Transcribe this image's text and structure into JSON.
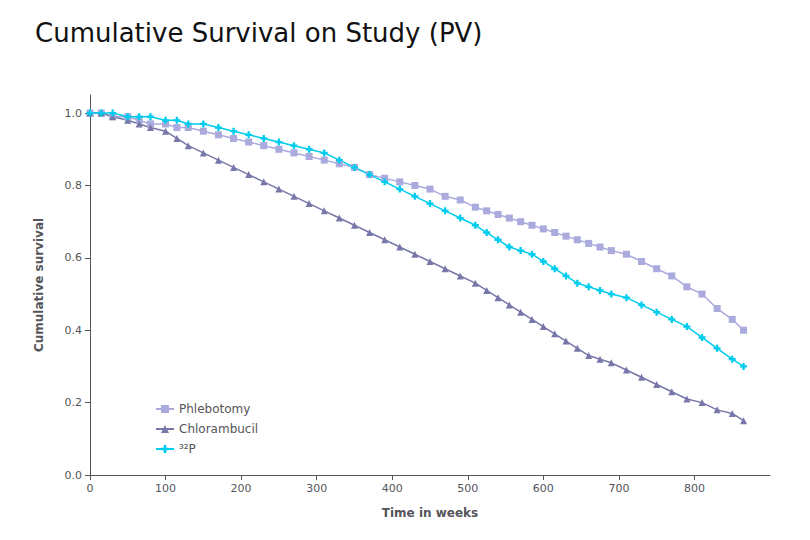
{
  "chart_data": {
    "type": "line",
    "title": "Cumulative Survival on Study (PV)",
    "xlabel": "Time in weeks",
    "ylabel": "Cumulative survival",
    "xlim": [
      0,
      900
    ],
    "ylim": [
      0.0,
      1.05
    ],
    "xticks": [
      0,
      100,
      200,
      300,
      400,
      500,
      600,
      700,
      800
    ],
    "yticks": [
      {
        "value": 0.0,
        "label": "0.0"
      },
      0.2,
      0.4,
      0.6,
      0.8,
      {
        "value": 1.0,
        "label": "1.0"
      }
    ],
    "grid": false,
    "legend": "lower left",
    "x": [
      0,
      15,
      30,
      50,
      65,
      80,
      100,
      115,
      130,
      150,
      170,
      190,
      210,
      230,
      250,
      270,
      290,
      310,
      330,
      350,
      370,
      390,
      410,
      430,
      450,
      470,
      490,
      510,
      525,
      540,
      555,
      570,
      585,
      600,
      615,
      630,
      645,
      660,
      675,
      690,
      710,
      730,
      750,
      770,
      790,
      810,
      830,
      850,
      865
    ],
    "series": [
      {
        "name": "Phlebotomy",
        "color": "#aaaadd",
        "marker": "square",
        "values": [
          1.0,
          1.0,
          0.99,
          0.99,
          0.98,
          0.97,
          0.97,
          0.96,
          0.96,
          0.95,
          0.94,
          0.93,
          0.92,
          0.91,
          0.9,
          0.89,
          0.88,
          0.87,
          0.86,
          0.85,
          0.83,
          0.82,
          0.81,
          0.8,
          0.79,
          0.77,
          0.76,
          0.74,
          0.73,
          0.72,
          0.71,
          0.7,
          0.69,
          0.68,
          0.67,
          0.66,
          0.65,
          0.64,
          0.63,
          0.62,
          0.61,
          0.59,
          0.57,
          0.55,
          0.52,
          0.5,
          0.46,
          0.43,
          0.4
        ]
      },
      {
        "name": "Chlorambucil",
        "color": "#7777aa",
        "marker": "triangle",
        "values": [
          1.0,
          1.0,
          0.99,
          0.98,
          0.97,
          0.96,
          0.95,
          0.93,
          0.91,
          0.89,
          0.87,
          0.85,
          0.83,
          0.81,
          0.79,
          0.77,
          0.75,
          0.73,
          0.71,
          0.69,
          0.67,
          0.65,
          0.63,
          0.61,
          0.59,
          0.57,
          0.55,
          0.53,
          0.51,
          0.49,
          0.47,
          0.45,
          0.43,
          0.41,
          0.39,
          0.37,
          0.35,
          0.33,
          0.32,
          0.31,
          0.29,
          0.27,
          0.25,
          0.23,
          0.21,
          0.2,
          0.18,
          0.17,
          0.15
        ]
      },
      {
        "name": "³²P",
        "color": "#00ccee",
        "marker": "plus",
        "values": [
          1.0,
          1.0,
          1.0,
          0.99,
          0.99,
          0.99,
          0.98,
          0.98,
          0.97,
          0.97,
          0.96,
          0.95,
          0.94,
          0.93,
          0.92,
          0.91,
          0.9,
          0.89,
          0.87,
          0.85,
          0.83,
          0.81,
          0.79,
          0.77,
          0.75,
          0.73,
          0.71,
          0.69,
          0.67,
          0.65,
          0.63,
          0.62,
          0.61,
          0.59,
          0.57,
          0.55,
          0.53,
          0.52,
          0.51,
          0.5,
          0.49,
          0.47,
          0.45,
          0.43,
          0.41,
          0.38,
          0.35,
          0.32,
          0.3
        ]
      }
    ]
  }
}
